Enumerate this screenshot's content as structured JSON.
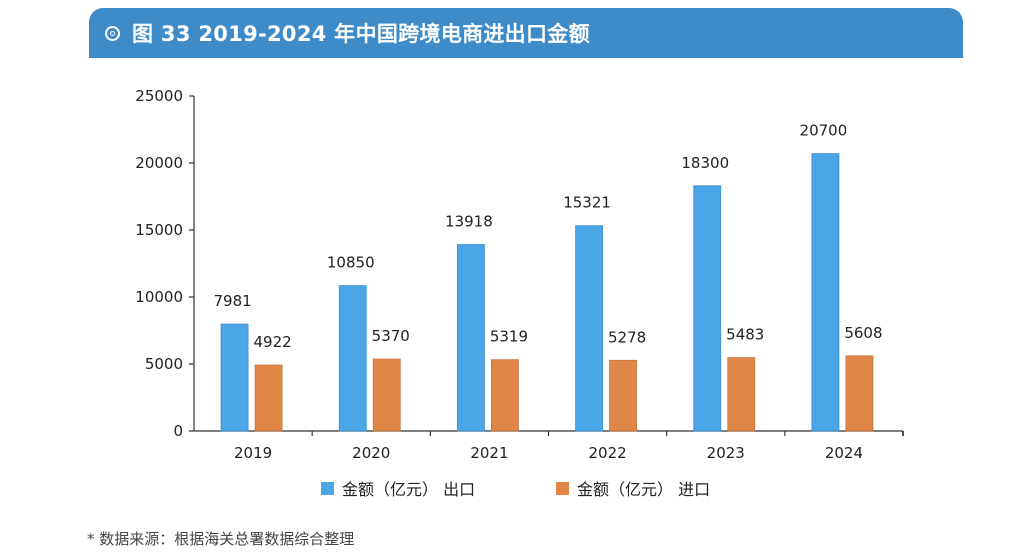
{
  "header": {
    "title": "图 33  2019-2024 年中国跨境电商进出口金额",
    "icon": "circle-target-icon"
  },
  "chart_data": {
    "type": "bar",
    "title": "图 33  2019-2024 年中国跨境电商进出口金额",
    "categories": [
      "2019",
      "2020",
      "2021",
      "2022",
      "2023",
      "2024"
    ],
    "series": [
      {
        "name": "金额（亿元） 出口",
        "color": "#4aa6e6",
        "values": [
          7981,
          10850,
          13918,
          15321,
          18300,
          20700
        ]
      },
      {
        "name": "金额（亿元） 进口",
        "color": "#e08747",
        "values": [
          4922,
          5370,
          5319,
          5278,
          5483,
          5608
        ]
      }
    ],
    "ylim": [
      0,
      25000
    ],
    "yticks": [
      0,
      5000,
      10000,
      15000,
      20000,
      25000
    ],
    "xlabel": "",
    "ylabel": "",
    "legend": "bottom",
    "grid": false,
    "data_labels": true
  },
  "source_note": "* 数据来源：根据海关总署数据综合整理"
}
